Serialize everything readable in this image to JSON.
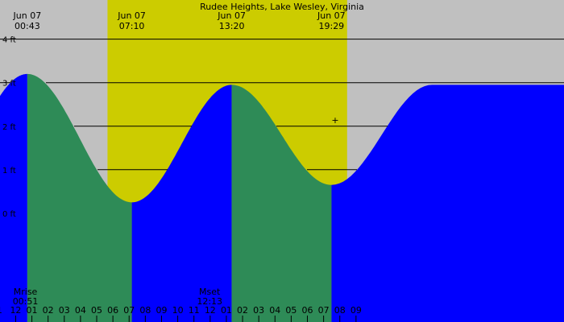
{
  "chart_data": {
    "type": "area",
    "title": "Rudee Heights, Lake Wesley, Virginia",
    "y_unit": "ft",
    "ylim": [
      -2.5,
      4.9
    ],
    "xlim": [
      "2025-06-06T23:02",
      "2025-06-08T09:50"
    ],
    "y_ticks": [
      {
        "value": 0,
        "label": "0 ft"
      },
      {
        "value": 1,
        "label": "1 ft"
      },
      {
        "value": 2,
        "label": "2 ft"
      },
      {
        "value": 3,
        "label": "3 ft"
      },
      {
        "value": 4,
        "label": "4 ft"
      }
    ],
    "grid": "horizontal",
    "tide_extremes": [
      {
        "date": "Jun 07",
        "time": "00:43",
        "type": "high",
        "height": 3.2
      },
      {
        "date": "Jun 07",
        "time": "07:10",
        "type": "low",
        "height": 0.25
      },
      {
        "date": "Jun 07",
        "time": "13:20",
        "type": "high",
        "height": 2.95
      },
      {
        "date": "Jun 07",
        "time": "19:29",
        "type": "low",
        "height": 0.65
      }
    ],
    "daylight": {
      "start": "05:40",
      "end": "20:27"
    },
    "moon_events": [
      {
        "label": "Mrise",
        "time": "00:51"
      },
      {
        "label": "Mset",
        "time": "12:13"
      }
    ],
    "hour_labels": [
      "1",
      "12",
      "01",
      "02",
      "03",
      "04",
      "05",
      "06",
      "07",
      "08",
      "09",
      "10",
      "11",
      "12",
      "01",
      "02",
      "03",
      "04",
      "05",
      "06",
      "07",
      "08",
      "09"
    ],
    "colors": {
      "night": "#c0c0c0",
      "day": "#cccc00",
      "rising": "#0000ff",
      "falling": "#2e8b57",
      "gridline": "#000000"
    }
  }
}
